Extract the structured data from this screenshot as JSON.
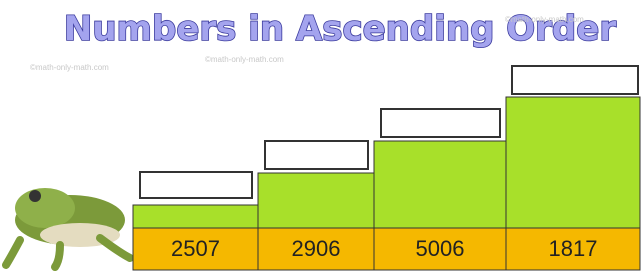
{
  "title": "Numbers in Ascending Order",
  "numbers": [
    2507,
    2906,
    5006,
    1817
  ],
  "watermark": "©math-only-math.com"
}
